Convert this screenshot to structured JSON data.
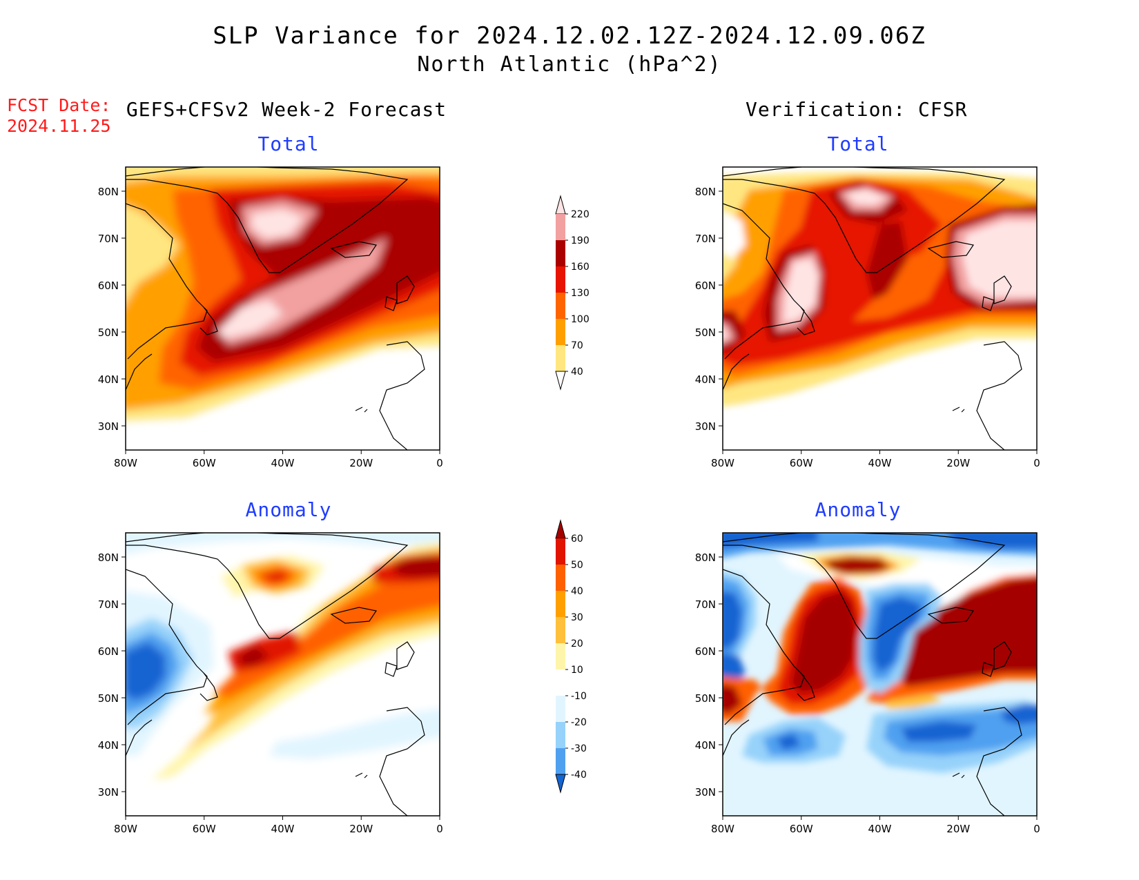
{
  "title_line1": "SLP Variance for 2024.12.02.12Z-2024.12.09.06Z",
  "title_line2": "North Atlantic (hPa^2)",
  "fcst_label": "FCST Date:",
  "fcst_date": "2024.11.25",
  "left_heading": "GEFS+CFSv2 Week-2 Forecast",
  "right_heading": "Verification: CFSR",
  "panels": {
    "fc_total": "Total",
    "ver_total": "Total",
    "fc_anom": "Anomaly",
    "ver_anom": "Anomaly"
  },
  "axes": {
    "lat_labels": [
      "80N",
      "70N",
      "60N",
      "50N",
      "40N",
      "30N"
    ],
    "lon_labels": [
      "80W",
      "60W",
      "40W",
      "20W",
      "0"
    ]
  },
  "colorbar_total": {
    "labels": [
      "40",
      "70",
      "100",
      "130",
      "160",
      "190",
      "220"
    ],
    "colors": [
      "#ffe680",
      "#ffa000",
      "#ff6400",
      "#e61400",
      "#aa0000",
      "#f2a0a0",
      "#ffe4e4"
    ]
  },
  "colorbar_anom": {
    "labels": [
      "-40",
      "-30",
      "-20",
      "-10",
      "10",
      "20",
      "30",
      "40",
      "50",
      "60"
    ],
    "colors": [
      "#1464d2",
      "#50a0f0",
      "#96d2fa",
      "#e1f5ff",
      "#ffffff",
      "#fff5aa",
      "#ffc03c",
      "#ffa000",
      "#ff6000",
      "#e11400",
      "#a50000"
    ]
  }
}
